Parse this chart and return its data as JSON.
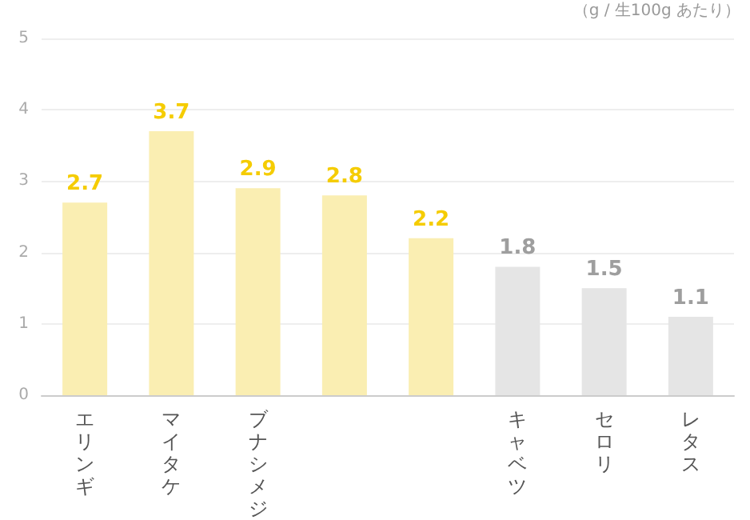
{
  "chart_data": {
    "type": "bar",
    "categories": [
      "エリンギ",
      "マイタケ",
      "ブナシメジ",
      null,
      null,
      "キャベツ",
      "セロリ",
      "レタス"
    ],
    "values": [
      2.7,
      3.7,
      2.9,
      2.8,
      2.2,
      1.8,
      1.5,
      1.1
    ],
    "colors": [
      "#faeeb2",
      "#faeeb2",
      "#faeeb2",
      "#faeeb2",
      "#faeeb2",
      "#e5e5e5",
      "#e5e5e5",
      "#e5e5e5"
    ],
    "ylim": [
      0,
      5
    ],
    "yticks": [
      0,
      1,
      2,
      3,
      4,
      5
    ],
    "grid": "y",
    "data_labels": true,
    "annotations": [
      "（g / 生100g あたり）"
    ]
  }
}
